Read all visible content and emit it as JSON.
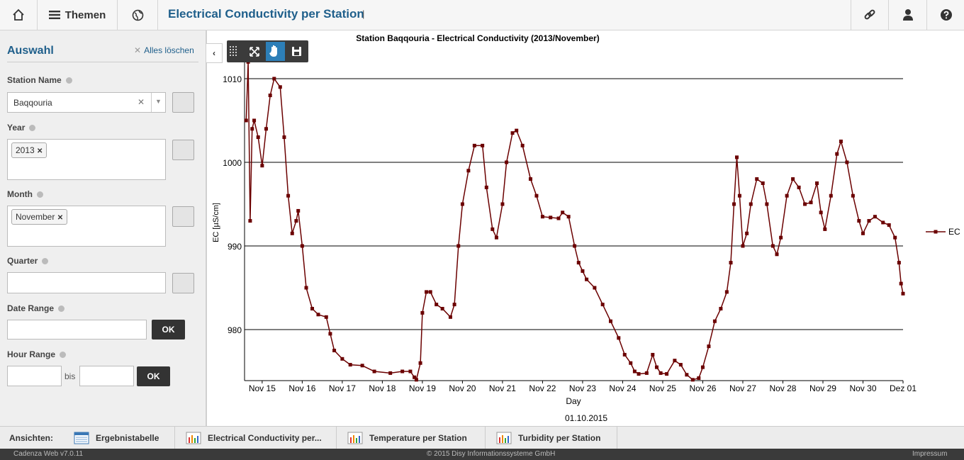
{
  "header": {
    "menu": "Themen",
    "title": "Electrical Conductivity per Station",
    "separator": "|"
  },
  "sidebar": {
    "title": "Auswahl",
    "clear": "Alles löschen",
    "station_label": "Station Name",
    "station_value": "Baqqouria",
    "year_label": "Year",
    "year_value": "2013",
    "month_label": "Month",
    "month_value": "November",
    "quarter_label": "Quarter",
    "date_range_label": "Date Range",
    "date_ok": "OK",
    "hour_range_label": "Hour Range",
    "hour_between": "bis",
    "hour_ok": "OK"
  },
  "tabs": {
    "label": "Ansichten:",
    "items": [
      "Ergebnistabelle",
      "Electrical Conductivity per...",
      "Temperature per Station",
      "Turbidity per Station"
    ]
  },
  "footer": {
    "version": "Cadenza Web v7.0.11",
    "copyright": "© 2015 Disy Informationssysteme GmbH",
    "imprint": "Impressum"
  },
  "chart_data": {
    "type": "line",
    "title": "Station Baqqouria - Electrical Conductivity (2013/November)",
    "x_label": "Day",
    "y_label": "EC [µS/cm]",
    "date_note": "01.10.2015",
    "xlim": [
      14.56,
      31
    ],
    "ylim": [
      973.9,
      1012.2
    ],
    "xticks": [
      {
        "value": 15,
        "label": "Nov 15"
      },
      {
        "value": 16,
        "label": "Nov 16"
      },
      {
        "value": 17,
        "label": "Nov 17"
      },
      {
        "value": 18,
        "label": "Nov 18"
      },
      {
        "value": 19,
        "label": "Nov 19"
      },
      {
        "value": 20,
        "label": "Nov 20"
      },
      {
        "value": 21,
        "label": "Nov 21"
      },
      {
        "value": 22,
        "label": "Nov 22"
      },
      {
        "value": 23,
        "label": "Nov 23"
      },
      {
        "value": 24,
        "label": "Nov 24"
      },
      {
        "value": 25,
        "label": "Nov 25"
      },
      {
        "value": 26,
        "label": "Nov 26"
      },
      {
        "value": 27,
        "label": "Nov 27"
      },
      {
        "value": 28,
        "label": "Nov 28"
      },
      {
        "value": 29,
        "label": "Nov 29"
      },
      {
        "value": 30,
        "label": "Nov 30"
      },
      {
        "value": 31,
        "label": "Dez 01"
      }
    ],
    "yticks": [
      980,
      990,
      1000,
      1010
    ],
    "grid": true,
    "legend": "right",
    "x": [
      14.6,
      14.65,
      14.7,
      14.75,
      14.8,
      14.9,
      15.0,
      15.1,
      15.2,
      15.3,
      15.45,
      15.55,
      15.65,
      15.75,
      15.85,
      15.9,
      16.0,
      16.1,
      16.25,
      16.4,
      16.6,
      16.7,
      16.8,
      17.0,
      17.2,
      17.5,
      17.8,
      18.2,
      18.5,
      18.7,
      18.8,
      18.85,
      18.95,
      19.0,
      19.1,
      19.2,
      19.35,
      19.5,
      19.7,
      19.8,
      19.9,
      20.0,
      20.15,
      20.3,
      20.5,
      20.6,
      20.75,
      20.85,
      21.0,
      21.1,
      21.25,
      21.35,
      21.5,
      21.7,
      21.85,
      22.0,
      22.2,
      22.4,
      22.5,
      22.65,
      22.8,
      22.9,
      23.0,
      23.1,
      23.3,
      23.5,
      23.7,
      23.9,
      24.05,
      24.2,
      24.3,
      24.4,
      24.6,
      24.75,
      24.85,
      24.95,
      25.1,
      25.3,
      25.45,
      25.6,
      25.75,
      25.9,
      26.0,
      26.15,
      26.3,
      26.45,
      26.6,
      26.7,
      26.78,
      26.85,
      26.92,
      27.0,
      27.1,
      27.2,
      27.35,
      27.5,
      27.6,
      27.75,
      27.85,
      27.95,
      28.1,
      28.25,
      28.4,
      28.55,
      28.7,
      28.85,
      28.95,
      29.05,
      29.2,
      29.35,
      29.45,
      29.6,
      29.75,
      29.9,
      30.0,
      30.15,
      30.3,
      30.5,
      30.65,
      30.8,
      30.9,
      30.95,
      31.0
    ],
    "series": [
      {
        "name": "EC",
        "color": "#6b0000",
        "values": [
          1005,
          1012,
          993,
          1004,
          1005,
          1003,
          999.6,
          1004,
          1008,
          1010,
          1009,
          1003,
          996,
          991.5,
          993,
          994.2,
          990,
          985,
          982.5,
          981.8,
          981.5,
          979.5,
          977.5,
          976.5,
          975.8,
          975.7,
          975,
          974.8,
          975,
          975,
          974.3,
          974,
          976,
          982,
          984.5,
          984.5,
          983,
          982.5,
          981.5,
          983,
          990,
          995,
          999,
          1002,
          1002,
          997,
          992,
          991,
          995,
          1000,
          1003.5,
          1003.8,
          1002,
          998,
          996,
          993.5,
          993.4,
          993.3,
          994,
          993.5,
          990,
          988,
          987,
          986,
          985,
          983,
          981,
          979,
          977,
          976,
          975,
          974.7,
          974.8,
          977,
          975.5,
          974.8,
          974.7,
          976.3,
          975.8,
          974.6,
          974,
          974.2,
          975.5,
          978,
          981,
          982.5,
          984.5,
          988,
          995,
          1000.6,
          996,
          990,
          991.5,
          995,
          998,
          997.5,
          995,
          990,
          989,
          991,
          996,
          998,
          997,
          995,
          995.2,
          997.5,
          994,
          992,
          996,
          1001,
          1002.5,
          1000,
          996,
          993,
          991.5,
          993,
          993.5,
          992.8,
          992.5,
          991,
          988,
          985.5,
          984.3
        ]
      }
    ]
  }
}
